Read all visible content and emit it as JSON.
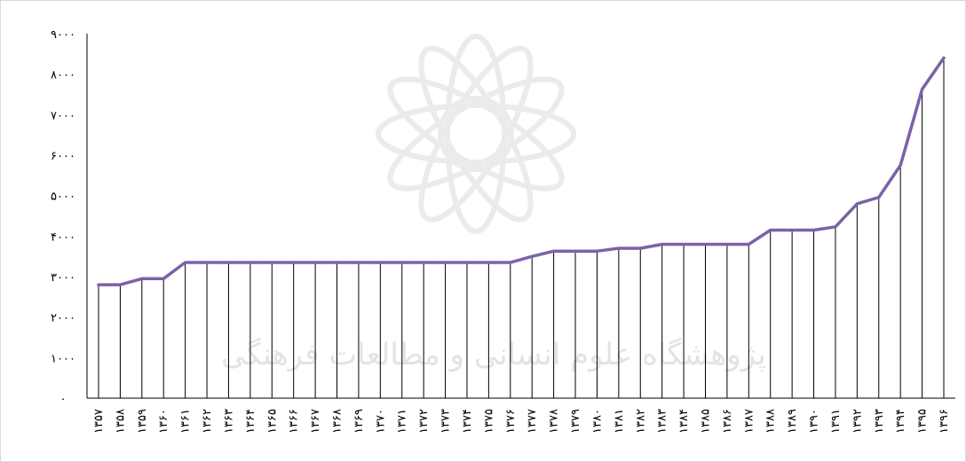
{
  "chart_data": {
    "type": "line",
    "title": "",
    "xlabel": "",
    "ylabel": "",
    "ylim": [
      0,
      9000
    ],
    "yticks": [
      0,
      1000,
      2000,
      3000,
      4000,
      5000,
      6000,
      7000,
      8000,
      9000
    ],
    "ytick_labels": [
      "۰",
      "۱۰۰۰",
      "۲۰۰۰",
      "۳۰۰۰",
      "۴۰۰۰",
      "۵۰۰۰",
      "۶۰۰۰",
      "۷۰۰۰",
      "۸۰۰۰",
      "۹۰۰۰"
    ],
    "categories": [
      "۱۳۵۷",
      "۱۳۵۸",
      "۱۳۵۹",
      "۱۳۶۰",
      "۱۳۶۱",
      "۱۳۶۲",
      "۱۳۶۳",
      "۱۳۶۴",
      "۱۳۶۵",
      "۱۳۶۶",
      "۱۳۶۷",
      "۱۳۶۸",
      "۱۳۶۹",
      "۱۳۷۰",
      "۱۳۷۱",
      "۱۳۷۲",
      "۱۳۷۳",
      "۱۳۷۴",
      "۱۳۷۵",
      "۱۳۷۶",
      "۱۳۷۷",
      "۱۳۷۸",
      "۱۳۷۹",
      "۱۳۸۰",
      "۱۳۸۱",
      "۱۳۸۲",
      "۱۳۸۳",
      "۱۳۸۴",
      "۱۳۸۵",
      "۱۳۸۶",
      "۱۳۸۷",
      "۱۳۸۸",
      "۱۳۸۹",
      "۱۳۹۰",
      "۱۳۹۱",
      "۱۳۹۲",
      "۱۳۹۳",
      "۱۳۹۴",
      "۱۳۹۵",
      "۱۳۹۶"
    ],
    "series": [
      {
        "values": [
          2800,
          2800,
          2950,
          2950,
          3350,
          3350,
          3350,
          3350,
          3350,
          3350,
          3350,
          3350,
          3350,
          3350,
          3350,
          3350,
          3350,
          3350,
          3350,
          3350,
          3500,
          3630,
          3630,
          3630,
          3700,
          3700,
          3800,
          3800,
          3800,
          3800,
          3800,
          4150,
          4150,
          4150,
          4230,
          4800,
          4960,
          5750,
          7630,
          8400
        ],
        "color": "#7b62a8"
      }
    ],
    "drop_lines": true,
    "drop_line_color": "#000000",
    "grid": false,
    "legend": "none",
    "watermark_text": "پژوهشگاه علوم انسانی و مطالعات فرهنگی",
    "watermark_color": "#c8c8c8"
  }
}
